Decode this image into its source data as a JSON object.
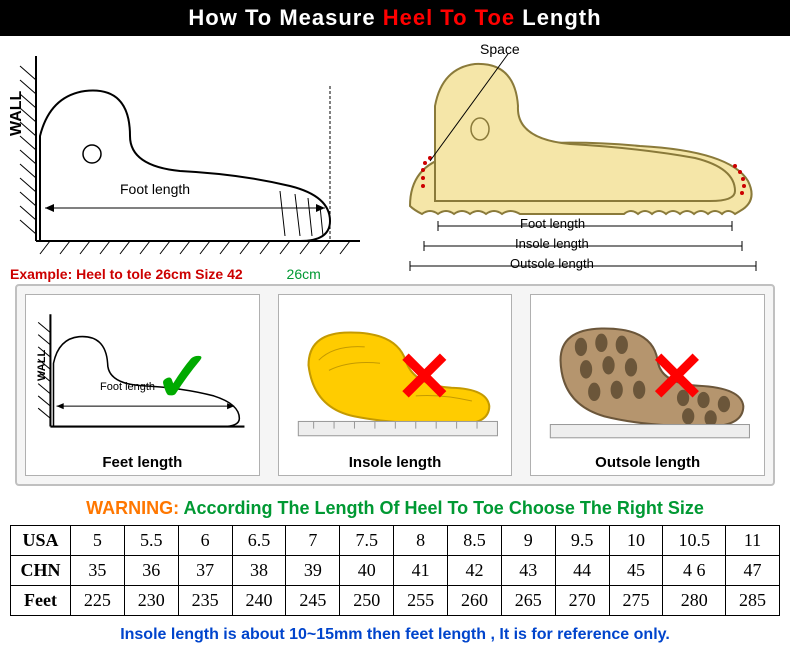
{
  "header": {
    "pre": "How To Measure ",
    "highlight": "Heel To Toe",
    "post": " Length"
  },
  "diagram_left": {
    "wall_label": "WALL",
    "foot_label": "Foot length",
    "example": "Example: Heel to tole 26cm Size 42",
    "example_cm": "26cm"
  },
  "diagram_right": {
    "space_label": "Space",
    "foot_label": "Foot length",
    "insole_label": "Insole length",
    "outsole_label": "Outsole length"
  },
  "panels": [
    {
      "label": "Feet length",
      "mark": "check",
      "wall": "WALL",
      "fl": "Foot length"
    },
    {
      "label": "Insole length",
      "mark": "cross"
    },
    {
      "label": "Outsole length",
      "mark": "cross"
    }
  ],
  "warning": {
    "title": "WARNING: ",
    "msg": "According The Length Of Heel To Toe Choose The Right Size"
  },
  "table": {
    "rows": [
      {
        "hdr": "USA",
        "cells": [
          "5",
          "5.5",
          "6",
          "6.5",
          "7",
          "7.5",
          "8",
          "8.5",
          "9",
          "9.5",
          "10",
          "10.5",
          "11"
        ]
      },
      {
        "hdr": "CHN",
        "cells": [
          "35",
          "36",
          "37",
          "38",
          "39",
          "40",
          "41",
          "42",
          "43",
          "44",
          "45",
          "4 6",
          "47"
        ]
      },
      {
        "hdr": "Feet",
        "cells": [
          "225",
          "230",
          "235",
          "240",
          "245",
          "250",
          "255",
          "260",
          "265",
          "270",
          "275",
          "280",
          "285"
        ]
      }
    ]
  },
  "footnote": "Insole length is about 10~15mm then feet length , It is for reference only.",
  "colors": {
    "black": "#000000",
    "red": "#ff0000",
    "darkred": "#cc0000",
    "green": "#009933",
    "orange": "#ff7700",
    "blue": "#0044cc",
    "cream": "#f5e6a8",
    "yellow": "#ffcc00",
    "brown": "#b5956e"
  }
}
